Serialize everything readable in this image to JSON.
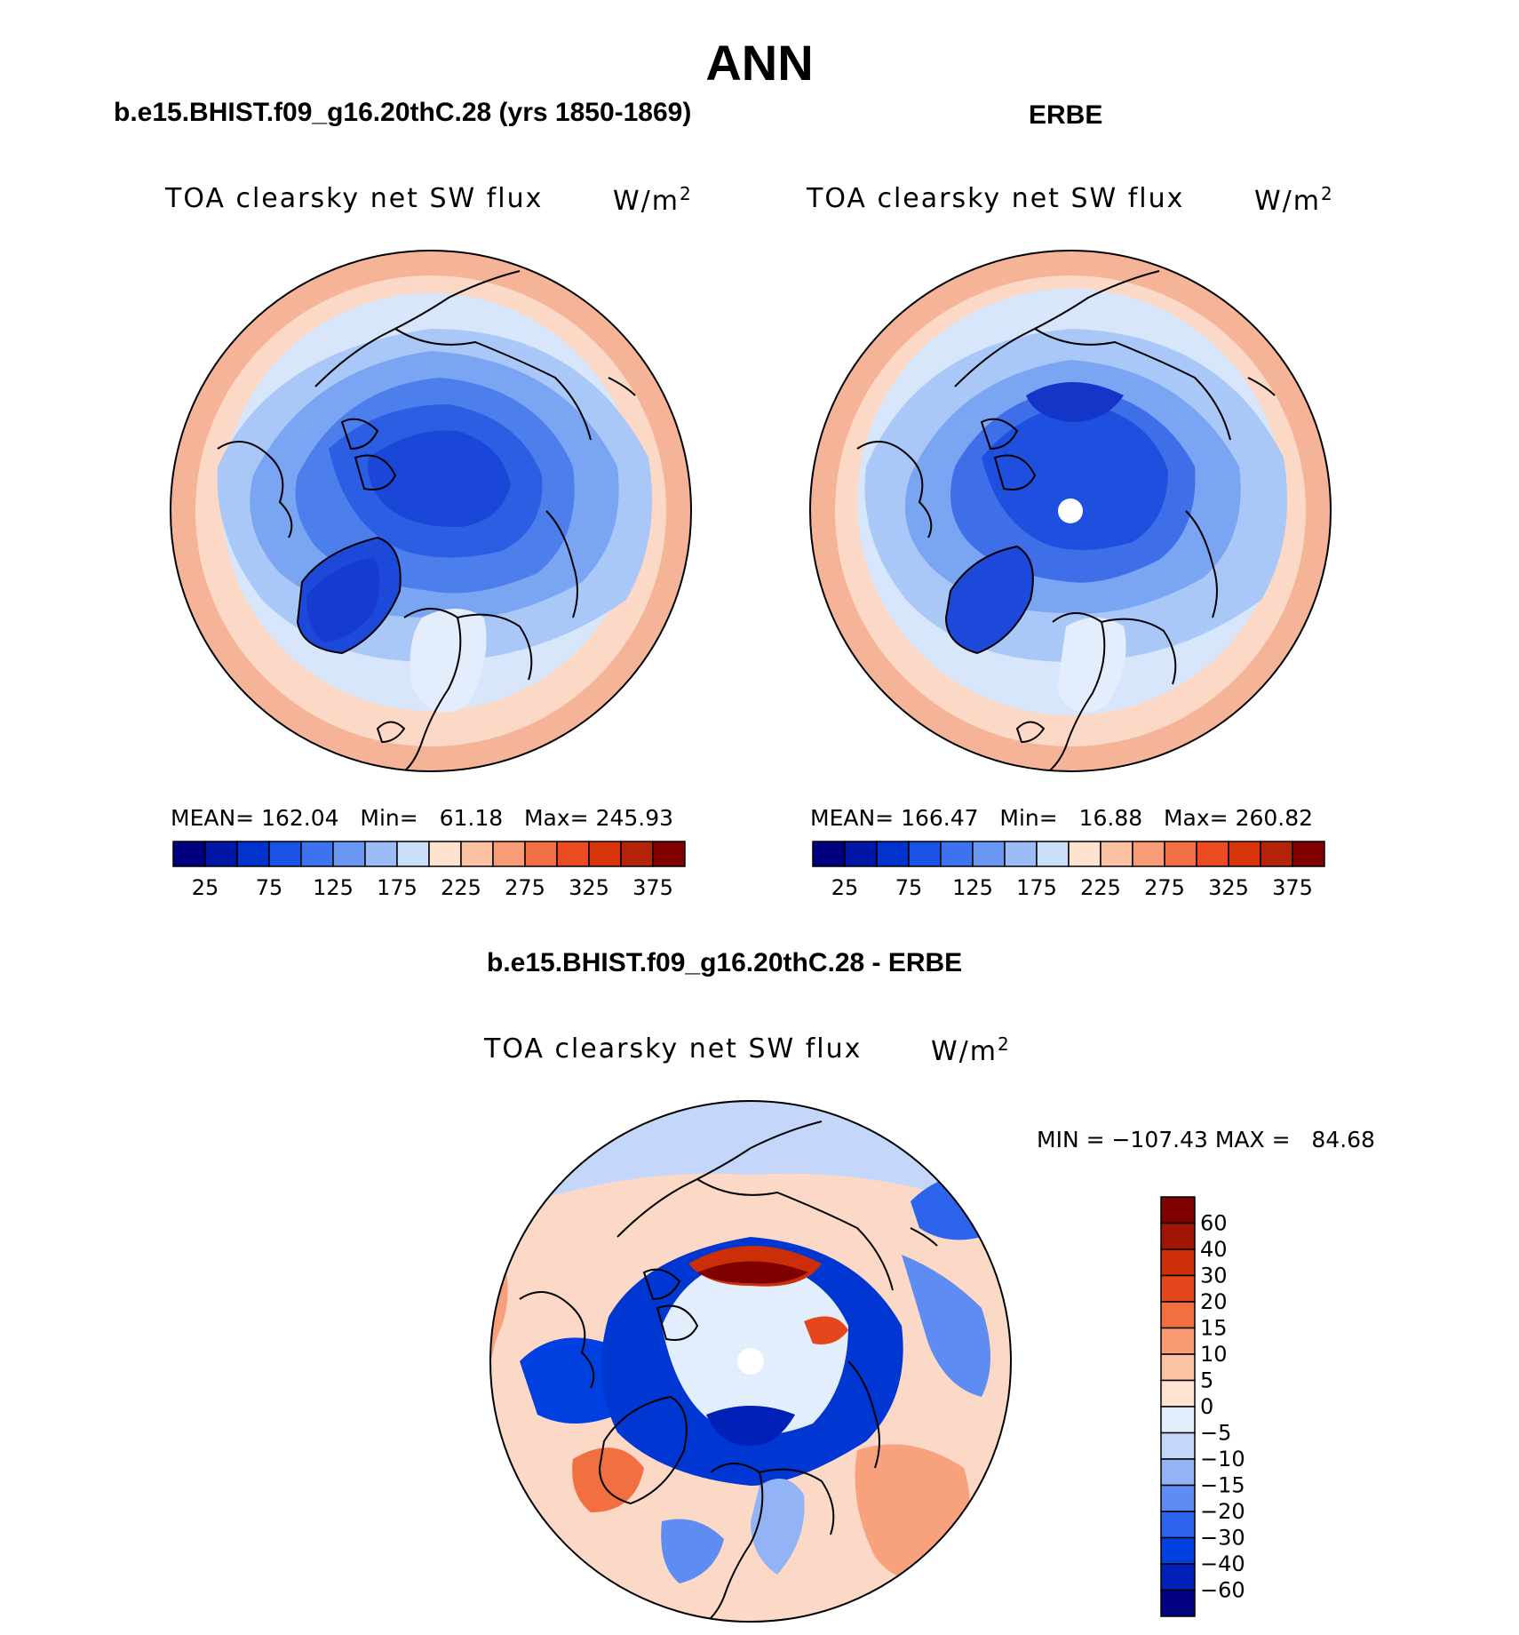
{
  "figure": {
    "title": "ANN",
    "colors": {
      "scale1": [
        "#00007f",
        "#0017a6",
        "#0032cd",
        "#1a52e6",
        "#3d73ee",
        "#6a97f2",
        "#9bbcf6",
        "#cde0fb",
        "#fde2cf",
        "#fbc1a3",
        "#f89c77",
        "#f37046",
        "#ea4b20",
        "#d8350b",
        "#b52309",
        "#800000"
      ],
      "diff": [
        "#000080",
        "#0020b8",
        "#0040e0",
        "#2d64ee",
        "#5e8cf2",
        "#92b3f6",
        "#c4d6fa",
        "#e2eefc",
        "#fde3d0",
        "#fbc2a4",
        "#f89a74",
        "#f26f42",
        "#e5471c",
        "#cc2e07",
        "#a01503",
        "#7f0000"
      ]
    },
    "coastline_icon": "polar-coastline-outline"
  },
  "panels": [
    {
      "case_title": "b.e15.BHIST.f09_g16.20thC.28 (yrs 1850-1869)",
      "variable": "TOA clearsky net SW flux",
      "units": "W/m",
      "units_sup": "2",
      "mean_label": "MEAN=",
      "mean": "162.04",
      "min_label": "Min=",
      "min": "61.18",
      "max_label": "Max=",
      "max": "245.93",
      "colorbar_ticks": [
        "25",
        "75",
        "125",
        "175",
        "225",
        "275",
        "325",
        "375"
      ],
      "has_missing_pole": false
    },
    {
      "case_title": "ERBE",
      "variable": "TOA clearsky net SW flux",
      "units": "W/m",
      "units_sup": "2",
      "mean_label": "MEAN=",
      "mean": "166.47",
      "min_label": "Min=",
      "min": "16.88",
      "max_label": "Max=",
      "max": "260.82",
      "colorbar_ticks": [
        "25",
        "75",
        "125",
        "175",
        "225",
        "275",
        "325",
        "375"
      ],
      "has_missing_pole": true
    }
  ],
  "difference": {
    "case_title": "b.e15.BHIST.f09_g16.20thC.28 - ERBE",
    "variable": "TOA clearsky net SW flux",
    "units": "W/m",
    "units_sup": "2",
    "minmax": "MIN = −107.43 MAX =   84.68",
    "colorbar_ticks": [
      "60",
      "40",
      "30",
      "20",
      "15",
      "10",
      "5",
      "0",
      "−5",
      "−10",
      "−15",
      "−20",
      "−30",
      "−40",
      "−60"
    ]
  }
}
